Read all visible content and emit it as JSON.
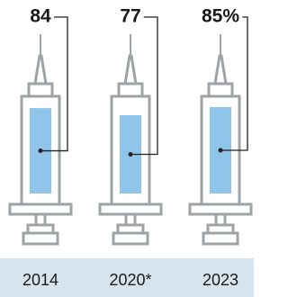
{
  "chart_data": {
    "type": "syringe",
    "categories": [
      "2014",
      "2020*",
      "2023"
    ],
    "values": [
      84,
      77,
      85
    ],
    "value_labels": [
      "84",
      "77",
      "85%"
    ],
    "color": "#8fc5ea",
    "ylim": [
      0,
      100
    ]
  }
}
